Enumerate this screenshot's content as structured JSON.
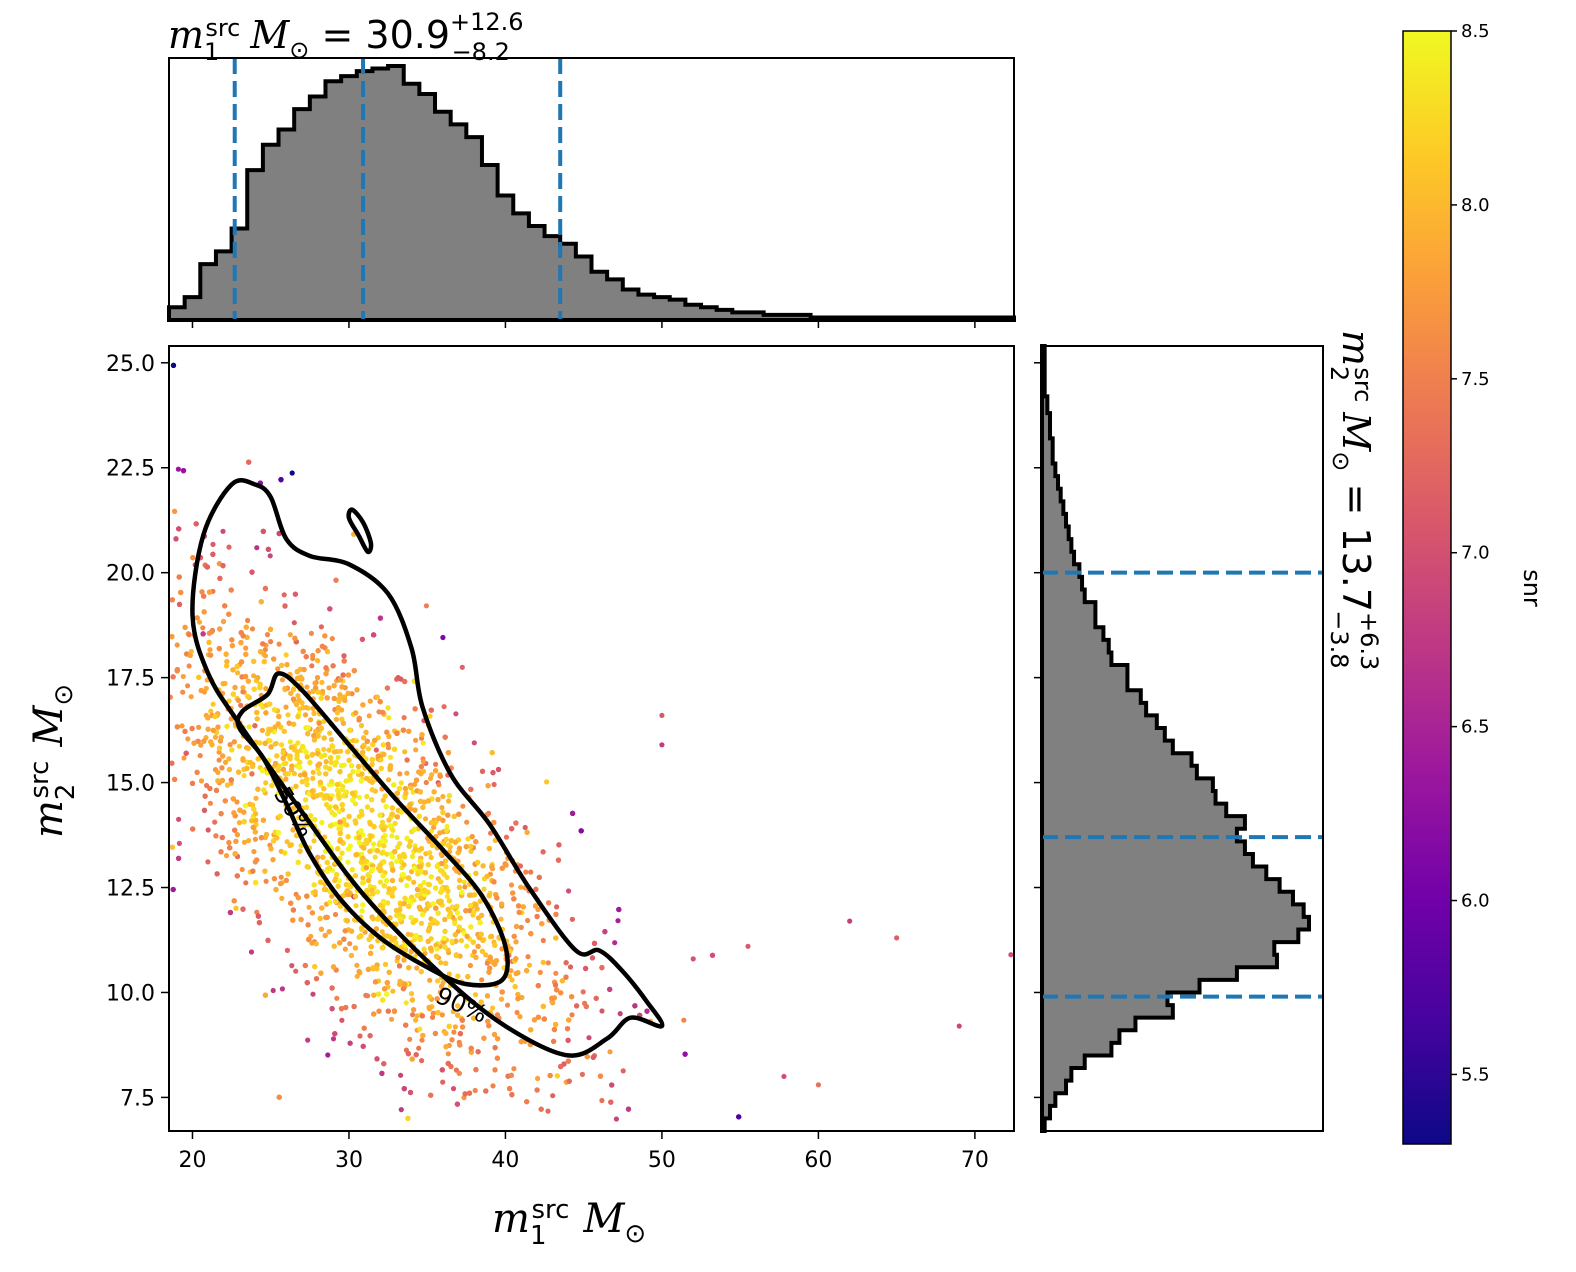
{
  "chart_data": [
    {
      "type": "histogram",
      "panel": "top-marginal",
      "title_parts": {
        "sym": "m",
        "sub": "1",
        "sup": "src",
        "unit": "M",
        "unit_sub": "⊙",
        "eq": " = ",
        "value": "30.9",
        "plus": "+12.6",
        "minus": "−8.2"
      },
      "x_range": [
        18.5,
        72.5
      ],
      "bin_edges": [
        18.5,
        19.5,
        20.5,
        21.5,
        22.5,
        23.5,
        24.5,
        25.5,
        26.5,
        27.5,
        28.5,
        29.5,
        30.5,
        31.5,
        32.5,
        33.5,
        34.5,
        35.5,
        36.5,
        37.5,
        38.5,
        39.5,
        40.5,
        41.5,
        42.5,
        43.5,
        44.5,
        45.5,
        46.5,
        47.5,
        48.5,
        49.5,
        50.5,
        51.5,
        52.5,
        53.5,
        54.5,
        55.5,
        56.5,
        57.5,
        58.5,
        59.5,
        60.5,
        61.5,
        62.5,
        63.5,
        64.5,
        65.5,
        66.5,
        67.5,
        68.5,
        69.5,
        70.5,
        71.5,
        72.5
      ],
      "density": [
        0.05,
        0.09,
        0.22,
        0.27,
        0.36,
        0.59,
        0.69,
        0.75,
        0.83,
        0.88,
        0.94,
        0.96,
        0.98,
        0.99,
        1.0,
        0.93,
        0.89,
        0.82,
        0.77,
        0.72,
        0.61,
        0.49,
        0.42,
        0.37,
        0.33,
        0.3,
        0.25,
        0.19,
        0.16,
        0.12,
        0.1,
        0.09,
        0.08,
        0.06,
        0.05,
        0.04,
        0.03,
        0.03,
        0.02,
        0.02,
        0.02,
        0.01,
        0.01,
        0.01,
        0.01,
        0.01,
        0.01,
        0.01,
        0.01,
        0.01,
        0.01,
        0.01,
        0.01,
        0.01
      ],
      "quantile_lines": [
        22.7,
        30.9,
        43.5
      ],
      "colors": {
        "fill": "#808080",
        "edge": "#000000",
        "quantile": "#1f77b4"
      }
    },
    {
      "type": "scatter",
      "panel": "main",
      "xlabel_parts": {
        "sym": "m",
        "sub": "1",
        "sup": "src",
        "unit": "M",
        "unit_sub": "⊙"
      },
      "ylabel_parts": {
        "sym": "m",
        "sub": "2",
        "sup": "src",
        "unit": "M",
        "unit_sub": "⊙"
      },
      "xlim": [
        18.5,
        72.5
      ],
      "ylim": [
        6.7,
        25.4
      ],
      "xticks": [
        "20",
        "30",
        "40",
        "50",
        "60",
        "70"
      ],
      "yticks": [
        "7.5",
        "10.0",
        "12.5",
        "15.0",
        "17.5",
        "20.0",
        "22.5",
        "25.0"
      ],
      "color_by": "snr",
      "point_cloud_note": "dense cloud along m1 from 19 to 53, m2 from 7.5 to 25; core near (30, 13)",
      "contours": [
        {
          "label": "50%",
          "points": [
            [
              25.5,
              17.6
            ],
            [
              27,
              17.2
            ],
            [
              30,
              15.9
            ],
            [
              33,
              14.6
            ],
            [
              36,
              13.4
            ],
            [
              38.5,
              12.3
            ],
            [
              40,
              11.1
            ],
            [
              39.8,
              10.3
            ],
            [
              37.5,
              10.2
            ],
            [
              35,
              10.6
            ],
            [
              32,
              11.3
            ],
            [
              29.5,
              12.2
            ],
            [
              27.5,
              13.3
            ],
            [
              26,
              14.5
            ],
            [
              24.5,
              15.6
            ],
            [
              23,
              16.3
            ],
            [
              23.2,
              16.7
            ],
            [
              24.8,
              17.1
            ]
          ],
          "label_at": [
            26.5,
            14.3
          ]
        },
        {
          "label": "90%",
          "points": [
            [
              24,
              22.1
            ],
            [
              25,
              21.8
            ],
            [
              26,
              20.8
            ],
            [
              27.5,
              20.4
            ],
            [
              30,
              20.2
            ],
            [
              32.5,
              19.5
            ],
            [
              34,
              18.2
            ],
            [
              34.7,
              16.8
            ],
            [
              36.5,
              15.2
            ],
            [
              39,
              14.0
            ],
            [
              41.5,
              12.5
            ],
            [
              44.5,
              11.0
            ],
            [
              46,
              11.0
            ],
            [
              47.5,
              10.5
            ],
            [
              49,
              9.8
            ],
            [
              50,
              9.2
            ],
            [
              48,
              9.4
            ],
            [
              46.5,
              8.9
            ],
            [
              44,
              8.5
            ],
            [
              40,
              9.2
            ],
            [
              36,
              10.4
            ],
            [
              31,
              12.3
            ],
            [
              27,
              14.3
            ],
            [
              23,
              16.4
            ],
            [
              21,
              17.6
            ],
            [
              20,
              19.0
            ],
            [
              20.7,
              20.9
            ],
            [
              22.5,
              22.1
            ]
          ],
          "label_at": [
            37.2,
            9.7
          ]
        },
        {
          "label": "",
          "points": [
            [
              30.2,
              21.5
            ],
            [
              30.9,
              21.2
            ],
            [
              31.4,
              20.7
            ],
            [
              31.2,
              20.5
            ],
            [
              30.6,
              20.9
            ],
            [
              30,
              21.3
            ]
          ]
        }
      ]
    },
    {
      "type": "histogram",
      "panel": "right-marginal",
      "orientation": "horizontal",
      "side_label_parts": {
        "sym": "m",
        "sub": "2",
        "sup": "src",
        "unit": "M",
        "unit_sub": "⊙",
        "eq": " = ",
        "value": "13.7",
        "plus": "+6.3",
        "minus": "−3.8"
      },
      "y_range": [
        6.7,
        25.4
      ],
      "bin_edges": [
        6.7,
        7.0,
        7.3,
        7.6,
        7.9,
        8.2,
        8.5,
        8.8,
        9.1,
        9.4,
        9.7,
        10.0,
        10.3,
        10.6,
        10.9,
        11.2,
        11.5,
        11.8,
        12.1,
        12.4,
        12.7,
        13.0,
        13.3,
        13.6,
        13.9,
        14.2,
        14.5,
        14.8,
        15.1,
        15.4,
        15.7,
        16.0,
        16.3,
        16.6,
        16.9,
        17.2,
        17.5,
        17.8,
        18.1,
        18.4,
        18.7,
        19.0,
        19.3,
        19.6,
        19.9,
        20.2,
        20.5,
        20.8,
        21.1,
        21.4,
        21.7,
        22.0,
        22.3,
        22.6,
        22.9,
        23.2,
        23.5,
        23.8,
        24.1,
        24.2,
        24.5,
        24.8,
        25.1,
        25.4
      ],
      "density": [
        0.01,
        0.03,
        0.05,
        0.09,
        0.11,
        0.16,
        0.26,
        0.29,
        0.35,
        0.49,
        0.47,
        0.59,
        0.73,
        0.88,
        0.87,
        0.96,
        1.0,
        0.98,
        0.94,
        0.89,
        0.84,
        0.79,
        0.76,
        0.73,
        0.76,
        0.69,
        0.65,
        0.64,
        0.58,
        0.56,
        0.49,
        0.46,
        0.43,
        0.39,
        0.37,
        0.32,
        0.32,
        0.26,
        0.25,
        0.23,
        0.2,
        0.2,
        0.16,
        0.15,
        0.14,
        0.12,
        0.11,
        0.1,
        0.09,
        0.08,
        0.07,
        0.06,
        0.05,
        0.04,
        0.04,
        0.03,
        0.03,
        0.02,
        0.02,
        0.01,
        0.01,
        0.01,
        0.01
      ],
      "quantile_lines": [
        9.9,
        13.7,
        20.0
      ],
      "colors": {
        "fill": "#808080",
        "edge": "#000000",
        "quantile": "#1f77b4"
      }
    },
    {
      "type": "colorbar",
      "panel": "colorbar",
      "label": "snr",
      "range": [
        5.3,
        8.5
      ],
      "ticks": [
        "5.5",
        "6.0",
        "6.5",
        "7.0",
        "7.5",
        "8.0",
        "8.5"
      ],
      "colormap": "plasma",
      "stops": [
        "#0d0887",
        "#46039f",
        "#7201a8",
        "#9c179e",
        "#bd3786",
        "#d8576b",
        "#ed7953",
        "#fb9f3a",
        "#fdca26",
        "#f0f921"
      ]
    }
  ]
}
